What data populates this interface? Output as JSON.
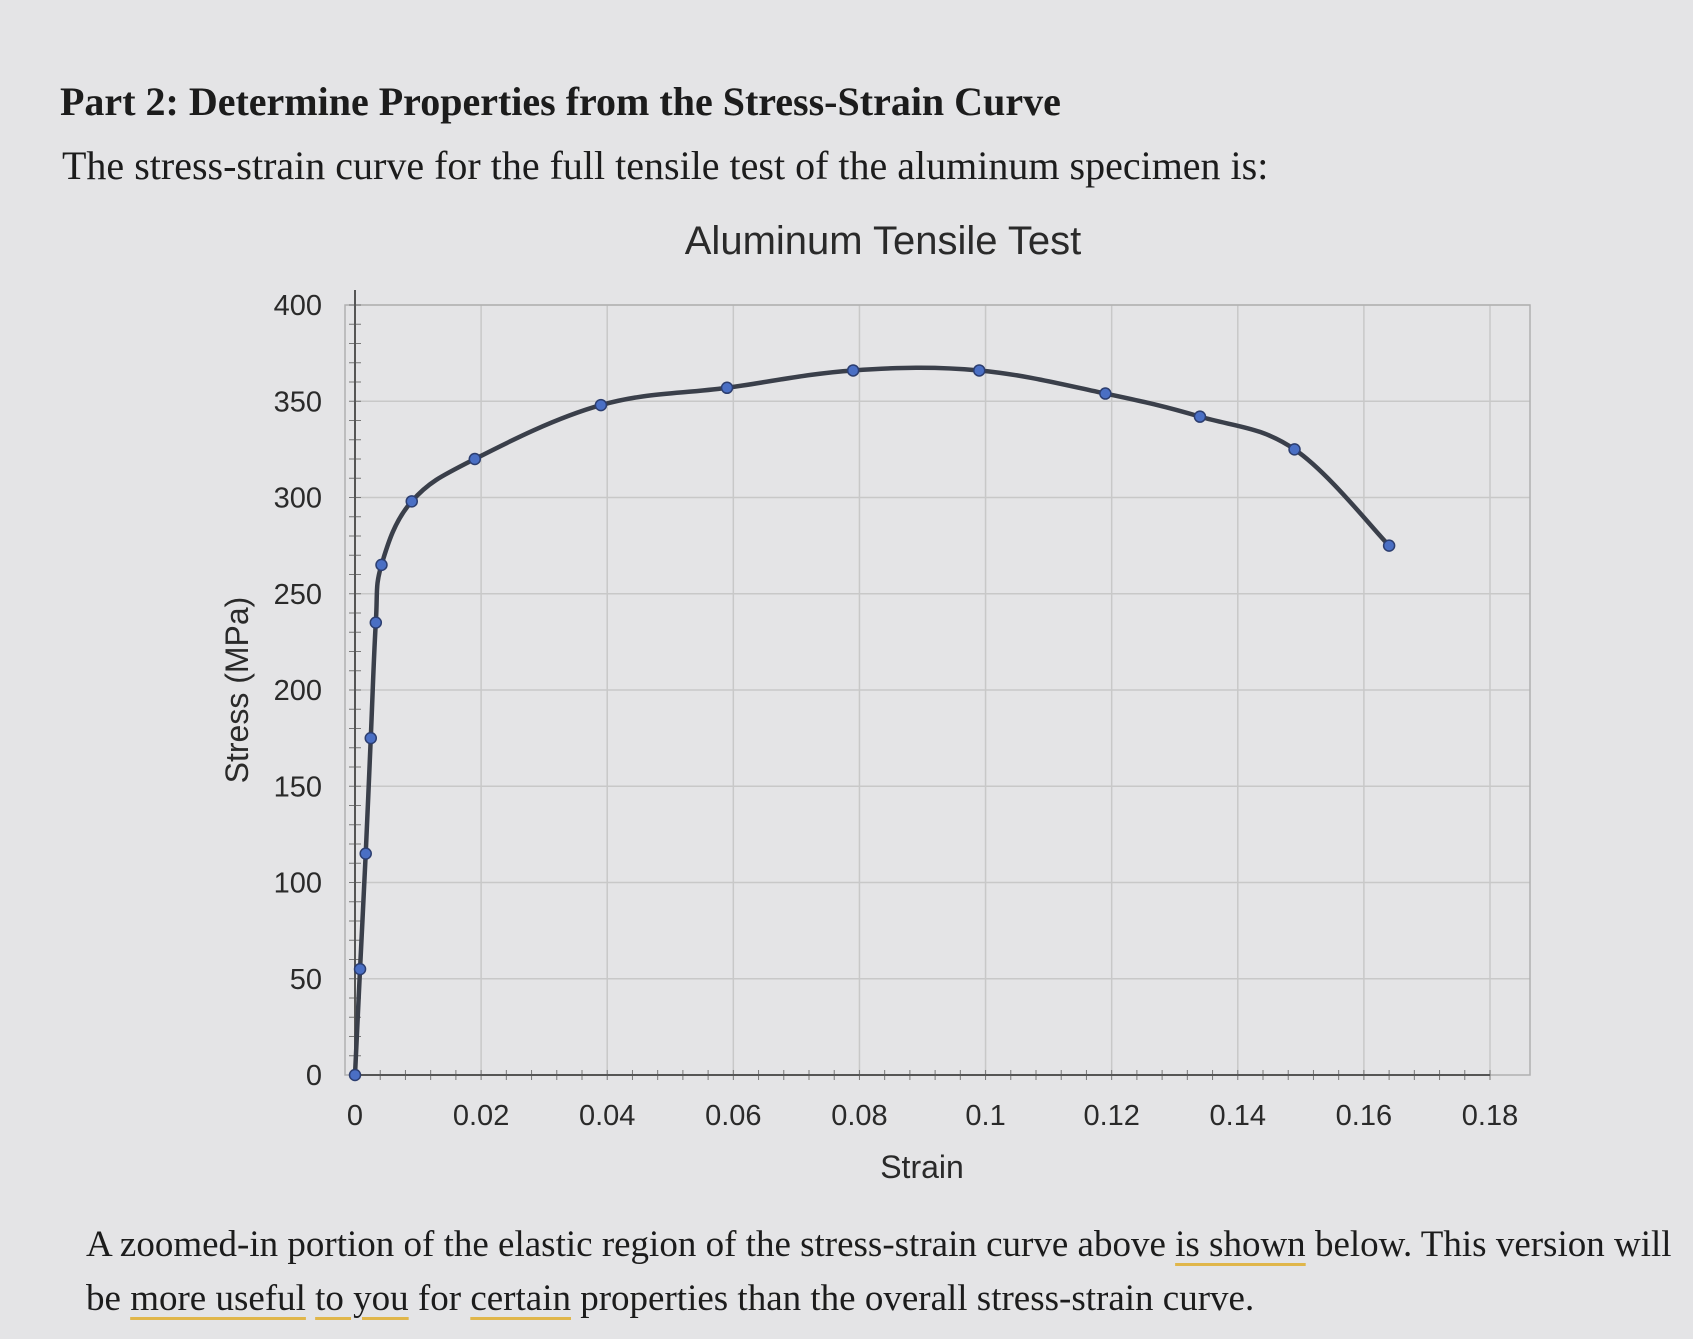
{
  "heading": "Part 2: Determine Properties from the Stress-Strain Curve",
  "intro": "The stress-strain curve for the full tensile test of the aluminum specimen is:",
  "outro": {
    "p1": "A zoomed-in portion of the elastic region of the stress-strain curve above ",
    "u1": "is shown",
    "p2": " below. This version will be ",
    "u2": "more useful",
    "p3": " ",
    "u3": "to you",
    "p4": " for ",
    "u4": "certain",
    "p5": " properties than the overall stress-strain curve."
  },
  "chart_data": {
    "type": "line",
    "title": "Aluminum Tensile Test",
    "xlabel": "Strain",
    "ylabel": "Stress (MPa)",
    "xlim": [
      0,
      0.18
    ],
    "ylim": [
      0,
      400
    ],
    "xticks": [
      "0",
      "0.02",
      "0.04",
      "0.06",
      "0.08",
      "0.1",
      "0.12",
      "0.14",
      "0.16",
      "0.18"
    ],
    "yticks": [
      "0",
      "50",
      "100",
      "150",
      "200",
      "250",
      "300",
      "350",
      "400"
    ],
    "grid": true,
    "legend": "none",
    "colors": {
      "line": "#3a3f4a",
      "marker": "#4a6fc4",
      "grid": "#c8c8c8"
    },
    "x": [
      0,
      0.0008,
      0.0017,
      0.0025,
      0.0033,
      0.0042,
      0.009,
      0.019,
      0.039,
      0.059,
      0.079,
      0.099,
      0.119,
      0.134,
      0.149,
      0.164
    ],
    "y": [
      0,
      55,
      115,
      175,
      235,
      265,
      298,
      320,
      348,
      357,
      366,
      366,
      354,
      342,
      325,
      275
    ]
  }
}
